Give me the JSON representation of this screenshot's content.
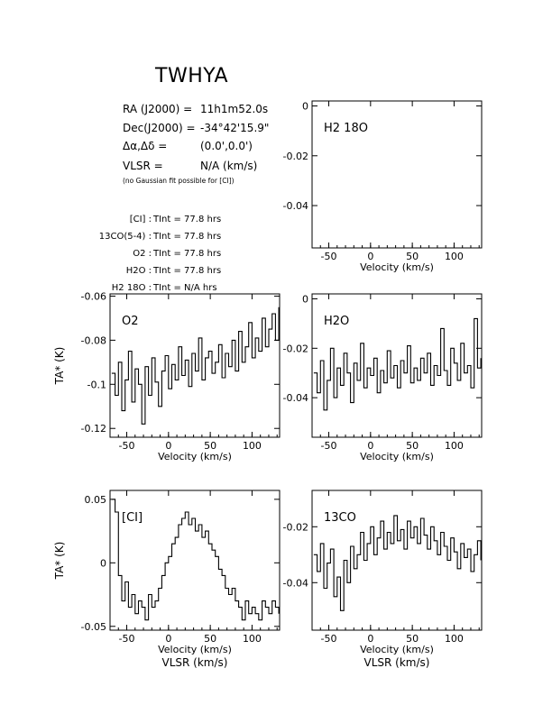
{
  "header": {
    "source": "TWHYA",
    "ra_label": "RA (J2000) =",
    "ra_value": "11h1m52.0s",
    "dec_label": "Dec(J2000) =",
    "dec_value": "-34°42'15.9\"",
    "offset_label": "Δα,Δδ =",
    "offset_value": "(0.0',0.0')",
    "vlsr_label": "VLSR =",
    "vlsr_value": "N/A  (km/s)",
    "note": "(no Gaussian fit possible for [CI])",
    "integration_times": [
      {
        "line": "[CI]",
        "value": "77.8 hrs"
      },
      {
        "line": "13CO(5-4)",
        "value": "77.8 hrs"
      },
      {
        "line": "O2",
        "value": "77.8 hrs"
      },
      {
        "line": "H2O",
        "value": "77.8 hrs"
      },
      {
        "line": "H2 18O",
        "value": "N/A hrs"
      }
    ],
    "tint_label": "TInt ="
  },
  "chart_data": [
    {
      "type": "line",
      "id": "h218o",
      "panel_label": "H2 18O",
      "xlabel": "Velocity (km/s)",
      "ylabel": "",
      "xlim": [
        -70,
        133
      ],
      "ylim": [
        -0.057,
        0.002
      ],
      "yticks": [
        0,
        -0.02,
        -0.04
      ],
      "xticks": [
        -50,
        0,
        50,
        100
      ],
      "x": [],
      "y": []
    },
    {
      "type": "line",
      "id": "o2",
      "panel_label": "O2",
      "xlabel": "Velocity (km/s)",
      "ylabel": "TA* (K)",
      "xlim": [
        -70,
        133
      ],
      "ylim": [
        -0.124,
        -0.059
      ],
      "yticks": [
        -0.06,
        -0.08,
        -0.1,
        -0.12
      ],
      "xticks": [
        -50,
        0,
        50,
        100
      ],
      "x": [
        -68,
        -64,
        -60,
        -56,
        -52,
        -48,
        -44,
        -40,
        -36,
        -32,
        -28,
        -24,
        -20,
        -16,
        -12,
        -8,
        -4,
        0,
        4,
        8,
        12,
        16,
        20,
        24,
        28,
        32,
        36,
        40,
        44,
        48,
        52,
        56,
        60,
        64,
        68,
        72,
        76,
        80,
        84,
        88,
        92,
        96,
        100,
        104,
        108,
        112,
        116,
        120,
        124,
        128,
        132
      ],
      "y": [
        -0.095,
        -0.105,
        -0.09,
        -0.112,
        -0.098,
        -0.085,
        -0.108,
        -0.093,
        -0.1,
        -0.118,
        -0.092,
        -0.105,
        -0.088,
        -0.099,
        -0.11,
        -0.094,
        -0.087,
        -0.102,
        -0.091,
        -0.098,
        -0.083,
        -0.096,
        -0.089,
        -0.101,
        -0.086,
        -0.094,
        -0.079,
        -0.098,
        -0.088,
        -0.085,
        -0.095,
        -0.09,
        -0.082,
        -0.097,
        -0.086,
        -0.092,
        -0.08,
        -0.094,
        -0.076,
        -0.09,
        -0.083,
        -0.072,
        -0.088,
        -0.079,
        -0.085,
        -0.07,
        -0.083,
        -0.075,
        -0.068,
        -0.08,
        -0.065
      ]
    },
    {
      "type": "line",
      "id": "h2o",
      "panel_label": "H2O",
      "xlabel": "Velocity (km/s)",
      "ylabel": "",
      "xlim": [
        -70,
        133
      ],
      "ylim": [
        -0.056,
        0.002
      ],
      "yticks": [
        0,
        -0.02,
        -0.04
      ],
      "xticks": [
        -50,
        0,
        50,
        100
      ],
      "x": [
        -68,
        -64,
        -60,
        -56,
        -52,
        -48,
        -44,
        -40,
        -36,
        -32,
        -28,
        -24,
        -20,
        -16,
        -12,
        -8,
        -4,
        0,
        4,
        8,
        12,
        16,
        20,
        24,
        28,
        32,
        36,
        40,
        44,
        48,
        52,
        56,
        60,
        64,
        68,
        72,
        76,
        80,
        84,
        88,
        92,
        96,
        100,
        104,
        108,
        112,
        116,
        120,
        124,
        128,
        132
      ],
      "y": [
        -0.03,
        -0.038,
        -0.025,
        -0.045,
        -0.033,
        -0.02,
        -0.04,
        -0.028,
        -0.035,
        -0.022,
        -0.03,
        -0.042,
        -0.026,
        -0.033,
        -0.018,
        -0.036,
        -0.028,
        -0.031,
        -0.024,
        -0.038,
        -0.029,
        -0.034,
        -0.021,
        -0.032,
        -0.027,
        -0.036,
        -0.025,
        -0.03,
        -0.019,
        -0.034,
        -0.028,
        -0.033,
        -0.024,
        -0.03,
        -0.022,
        -0.035,
        -0.027,
        -0.031,
        -0.012,
        -0.029,
        -0.035,
        -0.02,
        -0.026,
        -0.033,
        -0.018,
        -0.03,
        -0.027,
        -0.036,
        -0.008,
        -0.028,
        -0.024
      ]
    },
    {
      "type": "line",
      "id": "ci",
      "panel_label": "[CI]",
      "xlabel": "Velocity (km/s)",
      "xlabel2": "VLSR (km/s)",
      "ylabel": "TA* (K)",
      "xlim": [
        -70,
        133
      ],
      "ylim": [
        -0.053,
        0.057
      ],
      "yticks": [
        0.05,
        0,
        -0.05
      ],
      "ytick_labels": [
        "0.05",
        "0",
        "-0.05"
      ],
      "xticks": [
        -50,
        0,
        50,
        100
      ],
      "x": [
        -68,
        -64,
        -60,
        -56,
        -52,
        -48,
        -44,
        -40,
        -36,
        -32,
        -28,
        -24,
        -20,
        -16,
        -12,
        -8,
        -4,
        0,
        4,
        8,
        12,
        16,
        20,
        24,
        28,
        32,
        36,
        40,
        44,
        48,
        52,
        56,
        60,
        64,
        68,
        72,
        76,
        80,
        84,
        88,
        92,
        96,
        100,
        104,
        108,
        112,
        116,
        120,
        124,
        128,
        132
      ],
      "y": [
        0.05,
        0.04,
        -0.01,
        -0.03,
        -0.015,
        -0.035,
        -0.025,
        -0.04,
        -0.03,
        -0.035,
        -0.045,
        -0.025,
        -0.035,
        -0.03,
        -0.02,
        -0.01,
        0.0,
        0.005,
        0.015,
        0.02,
        0.03,
        0.035,
        0.04,
        0.03,
        0.035,
        0.025,
        0.03,
        0.02,
        0.025,
        0.015,
        0.01,
        0.005,
        -0.005,
        -0.01,
        -0.02,
        -0.025,
        -0.02,
        -0.03,
        -0.035,
        -0.045,
        -0.03,
        -0.04,
        -0.035,
        -0.04,
        -0.045,
        -0.03,
        -0.035,
        -0.04,
        -0.03,
        -0.035,
        -0.04
      ]
    },
    {
      "type": "line",
      "id": "13co",
      "panel_label": "13CO",
      "xlabel": "Velocity (km/s)",
      "xlabel2": "VLSR (km/s)",
      "ylabel": "",
      "xlim": [
        -70,
        133
      ],
      "ylim": [
        -0.057,
        -0.007
      ],
      "yticks": [
        -0.02,
        -0.04
      ],
      "xticks": [
        -50,
        0,
        50,
        100
      ],
      "x": [
        -68,
        -64,
        -60,
        -56,
        -52,
        -48,
        -44,
        -40,
        -36,
        -32,
        -28,
        -24,
        -20,
        -16,
        -12,
        -8,
        -4,
        0,
        4,
        8,
        12,
        16,
        20,
        24,
        28,
        32,
        36,
        40,
        44,
        48,
        52,
        56,
        60,
        64,
        68,
        72,
        76,
        80,
        84,
        88,
        92,
        96,
        100,
        104,
        108,
        112,
        116,
        120,
        124,
        128,
        132
      ],
      "y": [
        -0.03,
        -0.036,
        -0.026,
        -0.042,
        -0.033,
        -0.028,
        -0.045,
        -0.038,
        -0.05,
        -0.032,
        -0.04,
        -0.027,
        -0.035,
        -0.03,
        -0.022,
        -0.032,
        -0.026,
        -0.02,
        -0.03,
        -0.024,
        -0.018,
        -0.028,
        -0.022,
        -0.026,
        -0.016,
        -0.025,
        -0.021,
        -0.028,
        -0.018,
        -0.024,
        -0.02,
        -0.026,
        -0.017,
        -0.023,
        -0.028,
        -0.02,
        -0.025,
        -0.03,
        -0.022,
        -0.027,
        -0.032,
        -0.024,
        -0.029,
        -0.035,
        -0.026,
        -0.031,
        -0.028,
        -0.036,
        -0.03,
        -0.025,
        -0.032
      ]
    }
  ]
}
